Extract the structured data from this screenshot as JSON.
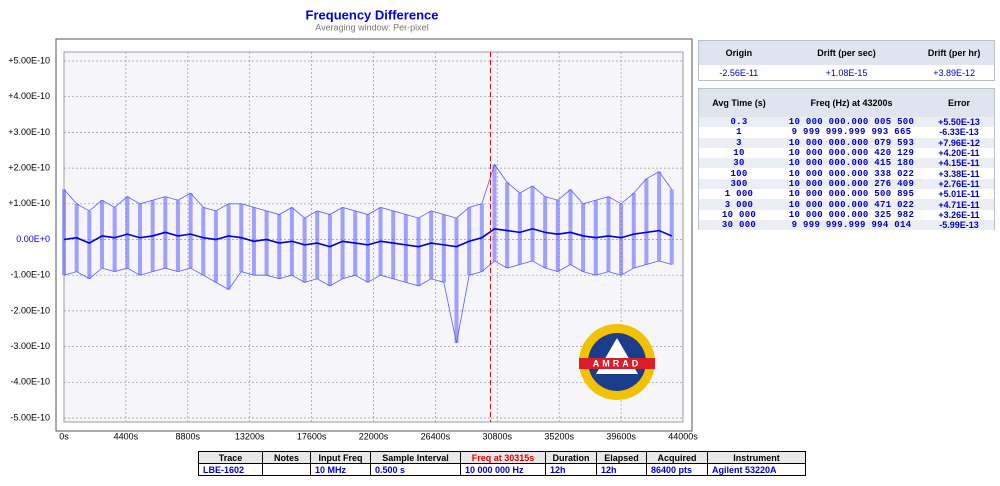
{
  "chart_data": {
    "type": "band-line",
    "title": "Frequency Difference",
    "subtitle": "Averaging window: Per-pixel",
    "x": [
      0,
      900,
      1800,
      2700,
      3600,
      4500,
      5400,
      6300,
      7200,
      8100,
      9000,
      9900,
      10800,
      11700,
      12600,
      13500,
      14400,
      15300,
      16200,
      17100,
      18000,
      18900,
      19800,
      20700,
      21600,
      22500,
      23400,
      24300,
      25200,
      26100,
      27000,
      27900,
      28800,
      29700,
      30600,
      31500,
      32400,
      33300,
      34200,
      35100,
      36000,
      36900,
      37800,
      38700,
      39600,
      40500,
      41400,
      42300,
      43200
    ],
    "series": [
      {
        "color": "#5a5aff",
        "values": [
          1.4e-10,
          1e-10,
          8e-11,
          1.1e-10,
          9e-11,
          1.2e-10,
          1e-10,
          1.1e-10,
          1.2e-10,
          1.1e-10,
          1.3e-10,
          9e-11,
          8e-11,
          1e-10,
          1e-10,
          9e-11,
          8e-11,
          7e-11,
          9e-11,
          6e-11,
          8e-11,
          7e-11,
          9e-11,
          8e-11,
          7e-11,
          9e-11,
          8e-11,
          7e-11,
          6e-11,
          8e-11,
          7e-11,
          6e-11,
          9e-11,
          1e-10,
          2.1e-10,
          1.6e-10,
          1.3e-10,
          1.5e-10,
          1.2e-10,
          1.1e-10,
          1.4e-10,
          1e-10,
          1.1e-10,
          1.2e-10,
          1e-10,
          1.3e-10,
          1.7e-10,
          1.9e-10,
          1.4e-10
        ]
      },
      {
        "color": "#5a5aff",
        "values": [
          -1e-10,
          -9e-11,
          -1.1e-10,
          -8e-11,
          -9e-11,
          -8e-11,
          -1e-10,
          -9e-11,
          -8e-11,
          -9e-11,
          -8e-11,
          -1e-10,
          -1.2e-10,
          -1.4e-10,
          -9e-11,
          -1e-10,
          -1e-10,
          -1.1e-10,
          -1e-10,
          -1.2e-10,
          -1.1e-10,
          -1.3e-10,
          -1.1e-10,
          -1e-10,
          -1.2e-10,
          -1e-10,
          -1.1e-10,
          -1.2e-10,
          -1.3e-10,
          -1.1e-10,
          -1.2e-10,
          -2.9e-10,
          -1e-10,
          -9e-11,
          -6e-11,
          -8e-11,
          -7e-11,
          -6e-11,
          -8e-11,
          -9e-11,
          -7e-11,
          -9e-11,
          -1e-10,
          -9e-11,
          -1e-10,
          -8e-11,
          -7e-11,
          -6e-11,
          -7e-11
        ]
      },
      {
        "color": "#0000d0",
        "values": [
          0,
          5e-12,
          -1e-11,
          1e-11,
          5e-12,
          1.5e-11,
          5e-12,
          1e-11,
          2e-11,
          1e-11,
          1.5e-11,
          5e-12,
          0,
          1e-11,
          5e-12,
          -5e-12,
          0,
          -1e-11,
          -5e-12,
          -1.5e-11,
          -1e-11,
          -2e-11,
          -5e-12,
          -1e-11,
          -1.5e-11,
          -5e-12,
          -1e-11,
          -1.5e-11,
          -2e-11,
          -1e-11,
          -1.5e-11,
          -2e-11,
          -5e-12,
          5e-12,
          3e-11,
          2.5e-11,
          2e-11,
          3e-11,
          2e-11,
          1.5e-11,
          2e-11,
          1e-11,
          5e-12,
          1e-11,
          5e-12,
          1.5e-11,
          2e-11,
          2.5e-11,
          1e-11
        ]
      }
    ],
    "marker": {
      "x": 30315,
      "color": "#e00000"
    },
    "xlim": [
      0,
      44000
    ],
    "xticks": [
      {
        "value": 0,
        "label": "0s"
      },
      {
        "value": 4400,
        "label": "4400s"
      },
      {
        "value": 8800,
        "label": "8800s"
      },
      {
        "value": 13200,
        "label": "13200s"
      },
      {
        "value": 17600,
        "label": "17600s"
      },
      {
        "value": 22000,
        "label": "22000s"
      },
      {
        "value": 26400,
        "label": "26400s"
      },
      {
        "value": 30800,
        "label": "30800s"
      },
      {
        "value": 35200,
        "label": "35200s"
      },
      {
        "value": 39600,
        "label": "39600s"
      },
      {
        "value": 44000,
        "label": "44000s"
      }
    ],
    "ylim": [
      -5e-10,
      5e-10
    ],
    "yticks": [
      {
        "value": 5e-10,
        "label": "+5.00E-10"
      },
      {
        "value": 4e-10,
        "label": "+4.00E-10"
      },
      {
        "value": 3e-10,
        "label": "+3.00E-10"
      },
      {
        "value": 2e-10,
        "label": "+2.00E-10"
      },
      {
        "value": 1e-10,
        "label": "+1.00E-10"
      },
      {
        "value": 0,
        "label": "0.00E+0"
      },
      {
        "value": -1e-10,
        "label": "-1.00E-10"
      },
      {
        "value": -2e-10,
        "label": "-2.00E-10"
      },
      {
        "value": -3e-10,
        "label": "-3.00E-10"
      },
      {
        "value": -4e-10,
        "label": "-4.00E-10"
      },
      {
        "value": -5e-10,
        "label": "-5.00E-10"
      }
    ],
    "grid": true,
    "logo_text": "AMRAD"
  },
  "drift_table": {
    "headers": [
      "Origin",
      "Drift (per sec)",
      "Drift (per hr)"
    ],
    "values": [
      "-2.56E-11",
      "+1.08E-15",
      "+3.89E-12"
    ]
  },
  "avg_table": {
    "headers": [
      "Avg Time (s)",
      "Freq (Hz) at 43200s",
      "Error"
    ],
    "rows": [
      [
        "0.3",
        "10 000 000.000 005 500",
        "+5.50E-13"
      ],
      [
        "1",
        "9 999 999.999 993 665",
        "-6.33E-13"
      ],
      [
        "3",
        "10 000 000.000 079 593",
        "+7.96E-12"
      ],
      [
        "10",
        "10 000 000.000 420 129",
        "+4.20E-11"
      ],
      [
        "30",
        "10 000 000.000 415 180",
        "+4.15E-11"
      ],
      [
        "100",
        "10 000 000.000 338 022",
        "+3.38E-11"
      ],
      [
        "300",
        "10 000 000.000 276 409",
        "+2.76E-11"
      ],
      [
        "1 000",
        "10 000 000.000 500 895",
        "+5.01E-11"
      ],
      [
        "3 000",
        "10 000 000.000 471 022",
        "+4.71E-11"
      ],
      [
        "10 000",
        "10 000 000.000 325 982",
        "+3.26E-11"
      ],
      [
        "30 000",
        "9 999 999.999 994 014",
        "-5.99E-13"
      ]
    ]
  },
  "info_table": {
    "headers": [
      "Trace",
      "Notes",
      "Input Freq",
      "Sample Interval",
      "Freq at 30315s",
      "Duration",
      "Elapsed",
      "Acquired",
      "Instrument"
    ],
    "trace": "LBE-1602",
    "input_freq": "10 MHz",
    "sample_interval": "0.500 s",
    "freq": "10 000 000 Hz",
    "duration": "12h",
    "elapsed": "12h",
    "acquired": "86400 pts",
    "instrument": "Agilent 53220A"
  }
}
